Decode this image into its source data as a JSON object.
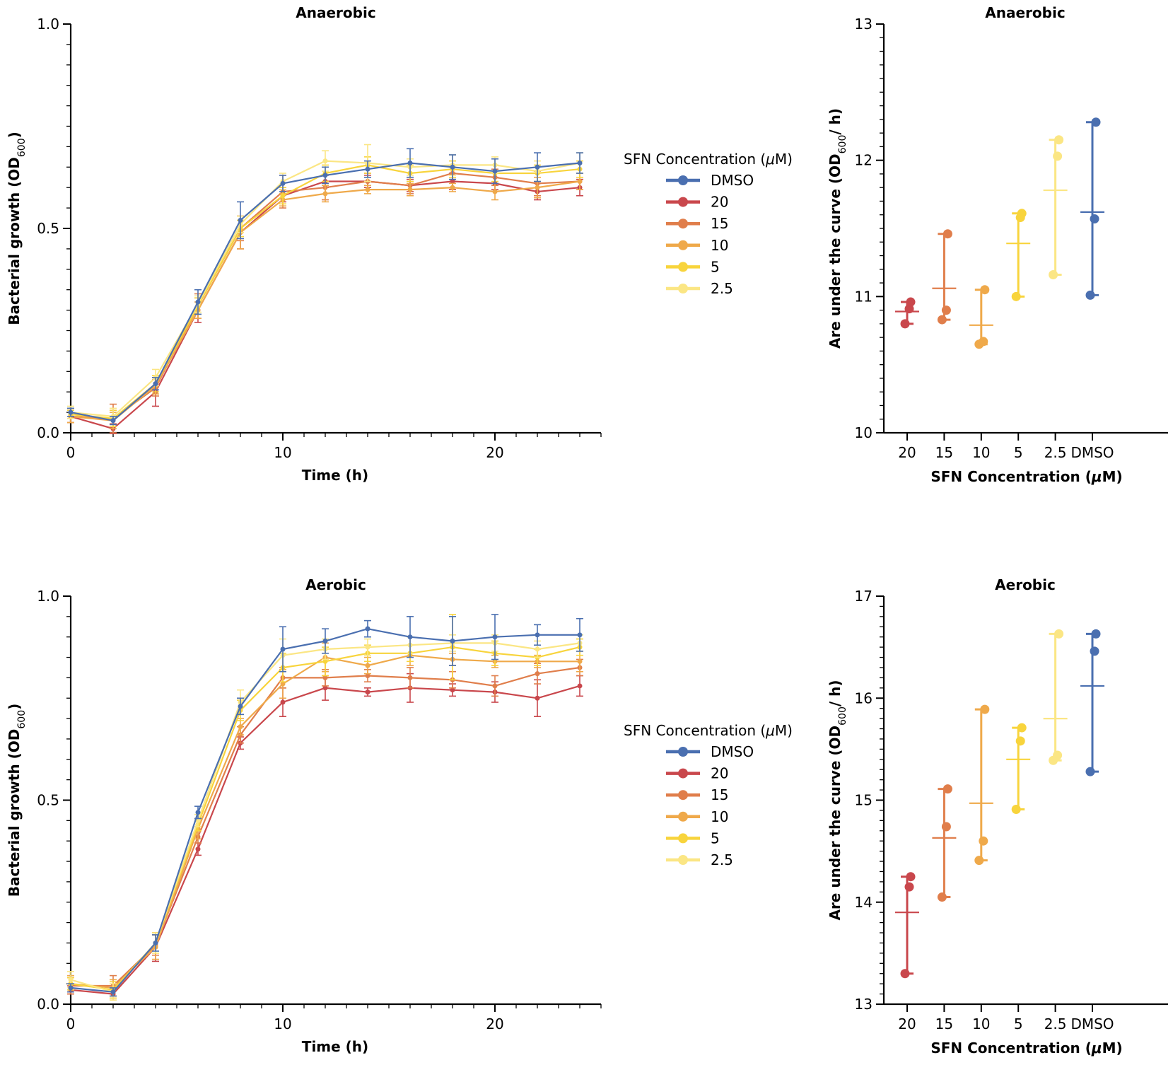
{
  "colors": {
    "DMSO": "#4a6fb0",
    "20": "#c9474c",
    "15": "#e07e4b",
    "10": "#efa94a",
    "5": "#f8d43c",
    "2.5": "#fbe684"
  },
  "legend": {
    "title_prefix": "SFN Concentration (",
    "title_mu": "μ",
    "title_suffix": "M)",
    "entries": [
      "DMSO",
      "20",
      "15",
      "10",
      "5",
      "2.5"
    ]
  },
  "chart_data": [
    {
      "id": "growth-anaerobic",
      "type": "line",
      "title": "Anaerobic",
      "xlabel": "Time (h)",
      "ylabel": "Bacterial growth (OD",
      "ylabel_sub": "600",
      "ylabel_end": ")",
      "xlim": [
        0,
        25
      ],
      "ylim": [
        0,
        1
      ],
      "xticks": [
        0,
        10,
        20
      ],
      "xtick_labels": [
        "0",
        "10",
        "20"
      ],
      "yticks": [
        0,
        0.5,
        1.0
      ],
      "ytick_labels": [
        "0.0",
        "0.5",
        "1.0"
      ],
      "x": [
        0,
        2,
        4,
        6,
        8,
        10,
        12,
        14,
        16,
        18,
        20,
        22,
        24
      ],
      "series": [
        {
          "name": "DMSO",
          "values": [
            0.05,
            0.03,
            0.12,
            0.32,
            0.52,
            0.61,
            0.63,
            0.645,
            0.66,
            0.65,
            0.64,
            0.65,
            0.66
          ],
          "err": [
            0.01,
            0.01,
            0.015,
            0.03,
            0.045,
            0.02,
            0.02,
            0.02,
            0.035,
            0.03,
            0.03,
            0.035,
            0.025
          ]
        },
        {
          "name": "20",
          "values": [
            0.04,
            0.01,
            0.1,
            0.3,
            0.49,
            0.58,
            0.615,
            0.615,
            0.605,
            0.615,
            0.61,
            0.59,
            0.6
          ],
          "err": [
            0.015,
            0.012,
            0.035,
            0.03,
            0.04,
            0.015,
            0.015,
            0.015,
            0.015,
            0.02,
            0.015,
            0.02,
            0.02
          ]
        },
        {
          "name": "15",
          "values": [
            0.04,
            0.035,
            0.11,
            0.31,
            0.5,
            0.59,
            0.6,
            0.615,
            0.605,
            0.635,
            0.625,
            0.61,
            0.615
          ],
          "err": [
            0.015,
            0.035,
            0.02,
            0.03,
            0.03,
            0.04,
            0.03,
            0.02,
            0.02,
            0.015,
            0.02,
            0.03,
            0.02
          ]
        },
        {
          "name": "10",
          "values": [
            0.04,
            0.03,
            0.115,
            0.3,
            0.49,
            0.57,
            0.585,
            0.595,
            0.595,
            0.6,
            0.59,
            0.6,
            0.615
          ],
          "err": [
            0.015,
            0.02,
            0.02,
            0.02,
            0.04,
            0.015,
            0.02,
            0.01,
            0.015,
            0.01,
            0.02,
            0.025,
            0.02
          ]
        },
        {
          "name": "5",
          "values": [
            0.045,
            0.035,
            0.12,
            0.31,
            0.5,
            0.58,
            0.635,
            0.655,
            0.635,
            0.645,
            0.635,
            0.635,
            0.645
          ],
          "err": [
            0.01,
            0.02,
            0.02,
            0.02,
            0.02,
            0.02,
            0.02,
            0.02,
            0.02,
            0.02,
            0.02,
            0.02,
            0.02
          ]
        },
        {
          "name": "2.5",
          "values": [
            0.05,
            0.04,
            0.135,
            0.315,
            0.51,
            0.615,
            0.665,
            0.66,
            0.65,
            0.655,
            0.655,
            0.64,
            0.66
          ],
          "err": [
            0.015,
            0.02,
            0.02,
            0.02,
            0.02,
            0.02,
            0.025,
            0.045,
            0.02,
            0.025,
            0.02,
            0.025,
            0.025
          ]
        }
      ]
    },
    {
      "id": "auc-anaerobic",
      "type": "scatter",
      "title": "Anaerobic",
      "xlabel_prefix": "SFN Concentration (",
      "xlabel_mu": "μ",
      "xlabel_suffix": "M)",
      "ylabel": "Are under the curve (OD",
      "ylabel_sub": "600",
      "ylabel_end": "/ h)",
      "ylim": [
        10,
        13
      ],
      "yticks": [
        10,
        11,
        12,
        13
      ],
      "ytick_labels": [
        "10",
        "11",
        "12",
        "13"
      ],
      "categories": [
        "20",
        "15",
        "10",
        "5",
        "2.5",
        "DMSO"
      ],
      "points": [
        [
          10.8,
          10.91,
          10.96
        ],
        [
          10.83,
          10.9,
          11.46
        ],
        [
          10.65,
          10.67,
          11.05
        ],
        [
          11.0,
          11.58,
          11.61
        ],
        [
          11.16,
          12.03,
          12.15
        ],
        [
          11.01,
          11.57,
          12.28
        ]
      ],
      "mean": [
        10.89,
        11.06,
        10.79,
        11.39,
        11.78,
        11.62
      ]
    },
    {
      "id": "growth-aerobic",
      "type": "line",
      "title": "Aerobic",
      "xlabel": "Time (h)",
      "ylabel": "Bacterial growth (OD",
      "ylabel_sub": "600",
      "ylabel_end": ")",
      "xlim": [
        0,
        25
      ],
      "ylim": [
        0,
        1
      ],
      "xticks": [
        0,
        10,
        20
      ],
      "xtick_labels": [
        "0",
        "10",
        "20"
      ],
      "yticks": [
        0,
        0.5,
        1.0
      ],
      "ytick_labels": [
        "0.0",
        "0.5",
        "1.0"
      ],
      "x": [
        0,
        2,
        4,
        6,
        8,
        10,
        12,
        14,
        16,
        18,
        20,
        22,
        24
      ],
      "series": [
        {
          "name": "DMSO",
          "values": [
            0.04,
            0.03,
            0.15,
            0.47,
            0.73,
            0.87,
            0.89,
            0.92,
            0.9,
            0.89,
            0.9,
            0.905,
            0.905
          ],
          "err": [
            0.01,
            0.01,
            0.02,
            0.015,
            0.02,
            0.055,
            0.03,
            0.02,
            0.05,
            0.06,
            0.055,
            0.025,
            0.04
          ]
        },
        {
          "name": "20",
          "values": [
            0.035,
            0.025,
            0.14,
            0.38,
            0.64,
            0.74,
            0.775,
            0.765,
            0.775,
            0.77,
            0.765,
            0.75,
            0.78
          ],
          "err": [
            0.01,
            0.015,
            0.035,
            0.015,
            0.015,
            0.035,
            0.03,
            0.01,
            0.035,
            0.015,
            0.025,
            0.045,
            0.025
          ]
        },
        {
          "name": "15",
          "values": [
            0.045,
            0.045,
            0.145,
            0.41,
            0.66,
            0.8,
            0.8,
            0.805,
            0.8,
            0.795,
            0.78,
            0.81,
            0.825
          ],
          "err": [
            0.02,
            0.025,
            0.025,
            0.015,
            0.02,
            0.025,
            0.02,
            0.015,
            0.025,
            0.02,
            0.025,
            0.025,
            0.02
          ]
        },
        {
          "name": "10",
          "values": [
            0.05,
            0.04,
            0.14,
            0.43,
            0.68,
            0.785,
            0.85,
            0.83,
            0.855,
            0.845,
            0.84,
            0.84,
            0.84
          ],
          "err": [
            0.02,
            0.02,
            0.03,
            0.025,
            0.02,
            0.035,
            0.035,
            0.02,
            0.025,
            0.015,
            0.015,
            0.015,
            0.025
          ]
        },
        {
          "name": "5",
          "values": [
            0.05,
            0.035,
            0.15,
            0.44,
            0.72,
            0.825,
            0.84,
            0.86,
            0.86,
            0.875,
            0.86,
            0.85,
            0.875
          ],
          "err": [
            0.015,
            0.02,
            0.025,
            0.015,
            0.025,
            0.035,
            0.035,
            0.02,
            0.02,
            0.08,
            0.03,
            0.02,
            0.02
          ]
        },
        {
          "name": "2.5",
          "values": [
            0.06,
            0.03,
            0.15,
            0.45,
            0.74,
            0.855,
            0.87,
            0.875,
            0.88,
            0.885,
            0.885,
            0.87,
            0.885
          ],
          "err": [
            0.02,
            0.02,
            0.025,
            0.015,
            0.03,
            0.04,
            0.025,
            0.02,
            0.02,
            0.02,
            0.02,
            0.02,
            0.02
          ]
        }
      ]
    },
    {
      "id": "auc-aerobic",
      "type": "scatter",
      "title": "Aerobic",
      "xlabel_prefix": "SFN Concentration (",
      "xlabel_mu": "μ",
      "xlabel_suffix": "M)",
      "ylabel": "Are under the curve (OD",
      "ylabel_sub": "600",
      "ylabel_end": "/ h)",
      "ylim": [
        13,
        17
      ],
      "yticks": [
        13,
        14,
        15,
        16,
        17
      ],
      "ytick_labels": [
        "13",
        "14",
        "15",
        "16",
        "17"
      ],
      "categories": [
        "20",
        "15",
        "10",
        "5",
        "2.5",
        "DMSO"
      ],
      "points": [
        [
          13.3,
          14.15,
          14.25
        ],
        [
          14.05,
          14.74,
          15.11
        ],
        [
          14.41,
          14.6,
          15.89
        ],
        [
          14.91,
          15.58,
          15.71
        ],
        [
          15.39,
          15.44,
          16.63
        ],
        [
          15.28,
          16.46,
          16.63
        ]
      ],
      "mean": [
        13.9,
        14.63,
        14.97,
        15.4,
        15.8,
        16.12
      ]
    }
  ]
}
